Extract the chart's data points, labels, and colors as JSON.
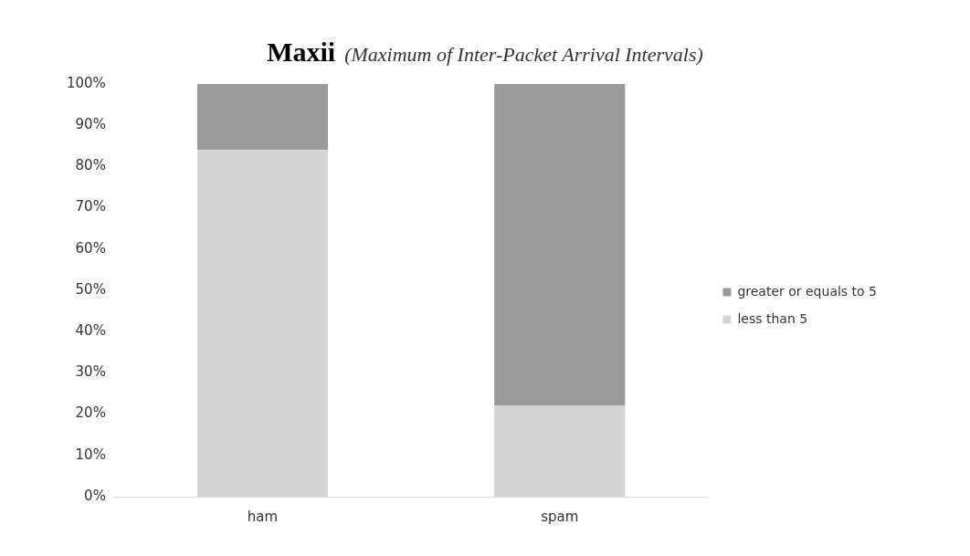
{
  "chart_data": {
    "type": "bar",
    "title": "Maxii",
    "subtitle": "(Maximum of Inter-Packet Arrival Intervals)",
    "categories": [
      "ham",
      "spam"
    ],
    "stacked": true,
    "series": [
      {
        "name": "less than 5",
        "color": "#d4d4d4",
        "values": [
          84,
          22
        ]
      },
      {
        "name": "greater or equals to 5",
        "color": "#9a9a9a",
        "values": [
          16,
          78
        ]
      }
    ],
    "ylim": [
      0,
      100
    ],
    "yticks": [
      {
        "value": 0,
        "label": "0%"
      },
      {
        "value": 10,
        "label": "10%"
      },
      {
        "value": 20,
        "label": "20%"
      },
      {
        "value": 30,
        "label": "30%"
      },
      {
        "value": 40,
        "label": "40%"
      },
      {
        "value": 50,
        "label": "50%"
      },
      {
        "value": 60,
        "label": "60%"
      },
      {
        "value": 70,
        "label": "70%"
      },
      {
        "value": 80,
        "label": "80%"
      },
      {
        "value": 90,
        "label": "90%"
      },
      {
        "value": 100,
        "label": "100%"
      }
    ],
    "grid": false,
    "legend": "right"
  }
}
